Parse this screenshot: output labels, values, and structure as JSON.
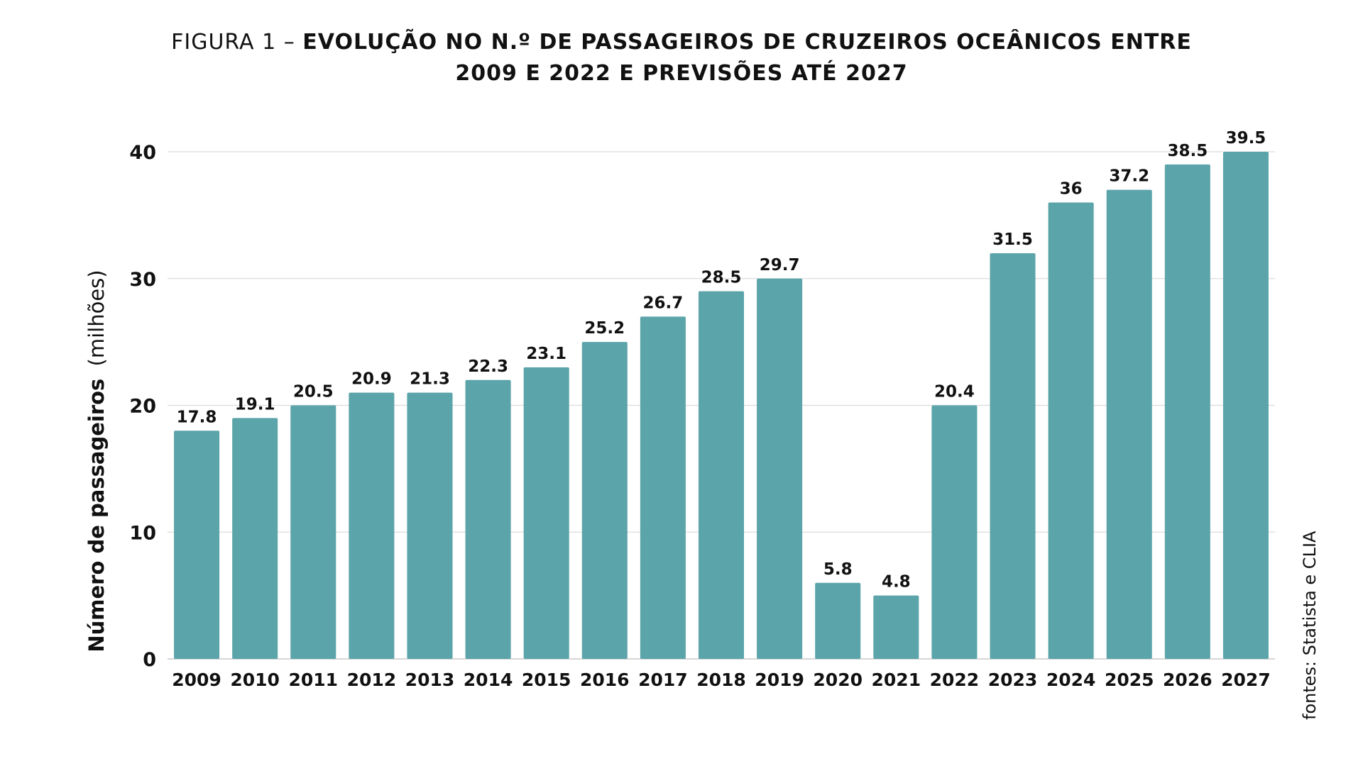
{
  "figure": {
    "label": "FIGURA 1 –",
    "title_line1": "EVOLUÇÃO NO N.º DE PASSAGEIROS DE CRUZEIROS OCEÂNICOS ENTRE",
    "title_line2": "2009 E 2022 E PREVISÕES ATÉ 2027",
    "source": "fontes: Statista e CLIA"
  },
  "chart_data": {
    "type": "bar",
    "title": "FIGURA 1 – EVOLUÇÃO NO N.º DE PASSAGEIROS DE CRUZEIROS OCEÂNICOS ENTRE 2009 E 2022 E PREVISÕES ATÉ 2027",
    "xlabel": "",
    "ylabel_bold": "Número de passageiros",
    "ylabel_unit": "(milhões)",
    "ylim": [
      0,
      40
    ],
    "yticks": [
      0,
      10,
      20,
      30,
      40
    ],
    "grid": true,
    "bar_color": "#5ba4a9",
    "categories": [
      "2009",
      "2010",
      "2011",
      "2012",
      "2013",
      "2014",
      "2015",
      "2016",
      "2017",
      "2018",
      "2019",
      "2020",
      "2021",
      "2022",
      "2023",
      "2024",
      "2025",
      "2026",
      "2027"
    ],
    "values": [
      17.8,
      19.1,
      20.5,
      20.9,
      21.3,
      22.3,
      23.1,
      25.2,
      26.7,
      28.5,
      29.7,
      5.8,
      4.8,
      20.4,
      31.5,
      36,
      37.2,
      38.5,
      39.5
    ],
    "bar_heights_shown": [
      18,
      19,
      20,
      21,
      21,
      22,
      23,
      25,
      27,
      29,
      30,
      6,
      5,
      20,
      32,
      36,
      37,
      39,
      40
    ]
  }
}
